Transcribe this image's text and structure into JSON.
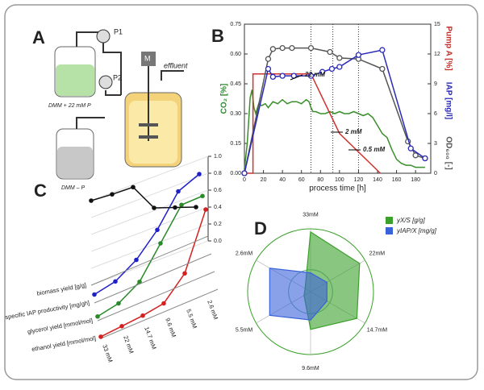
{
  "diagram": {
    "panel": "A",
    "labels": {
      "p1": "P1",
      "p2": "P2",
      "motor": "M",
      "effluent": "effluent",
      "feed": "DMM + 22 mM P",
      "feed2": "DMM – P"
    }
  },
  "chart_data": [
    {
      "type": "line",
      "panel": "B",
      "xlabel": "process time [h]",
      "ylabel": "CO₂ [%]",
      "ylabel_color": "#2e8b2e",
      "y2labels": [
        {
          "text": "Pump A [%]",
          "color": "#c0302b"
        },
        {
          "text": "IAP [mg/l]",
          "color": "#2a2ab0"
        },
        {
          "text": "OD₆₀₀ [-]",
          "color": "#555555"
        }
      ],
      "xlim": [
        0,
        196
      ],
      "xticks": [
        0,
        20,
        40,
        60,
        80,
        100,
        120,
        140,
        160,
        180
      ],
      "ylim": [
        0,
        0.75
      ],
      "yticks": [
        {
          "value": 0,
          "label": "0.00"
        },
        0.15,
        {
          "value": 0.3,
          "label": "0.30"
        },
        0.45,
        {
          "value": 0.6,
          "label": "0.60"
        },
        0.75
      ],
      "y2lim": [
        0,
        15
      ],
      "y2ticks": [
        0,
        3,
        6,
        9,
        12,
        15
      ],
      "vlines": [
        70,
        93,
        120
      ],
      "annotations": [
        "22 mM",
        "2 mM",
        "0.5 mM"
      ],
      "series": [
        {
          "name": "CO₂",
          "color": "#3a8f2a",
          "axis": "y",
          "x": [
            0,
            3,
            6,
            8,
            10,
            12,
            15,
            18,
            22,
            25,
            30,
            35,
            40,
            45,
            50,
            55,
            60,
            65,
            68,
            70,
            72,
            75,
            80,
            85,
            90,
            95,
            100,
            105,
            110,
            115,
            120,
            125,
            130,
            135,
            140,
            145,
            150,
            155,
            160,
            165,
            170,
            175,
            180,
            185,
            190
          ],
          "values": [
            0.02,
            0.15,
            0.38,
            0.42,
            0.33,
            0.3,
            0.35,
            0.34,
            0.35,
            0.33,
            0.36,
            0.35,
            0.37,
            0.35,
            0.36,
            0.36,
            0.35,
            0.37,
            0.36,
            0.33,
            0.31,
            0.31,
            0.3,
            0.3,
            0.31,
            0.3,
            0.31,
            0.3,
            0.3,
            0.31,
            0.3,
            0.29,
            0.3,
            0.28,
            0.24,
            0.2,
            0.18,
            0.12,
            0.07,
            0.05,
            0.04,
            0.04,
            0.03,
            0.03,
            0.03
          ]
        },
        {
          "name": "Pump A",
          "color": "#d0312d",
          "axis": "y2",
          "x": [
            0,
            9,
            9,
            70,
            100,
            143
          ],
          "values": [
            0,
            0,
            10,
            10,
            4,
            0
          ]
        },
        {
          "name": "OD",
          "color": "#555555",
          "axis": "y2",
          "markers": true,
          "x": [
            0,
            25,
            30,
            40,
            50,
            70,
            90,
            100,
            120,
            145,
            172,
            180,
            190
          ],
          "values": [
            0,
            11.5,
            12.5,
            12.6,
            12.6,
            12.6,
            12.2,
            11.6,
            11.5,
            10.5,
            3.2,
            1.8,
            1.5
          ]
        },
        {
          "name": "IAP",
          "color": "#2a2ab8",
          "axis": "y2",
          "markers": true,
          "x": [
            0,
            25,
            30,
            40,
            52,
            70,
            82,
            92,
            100,
            120,
            145,
            175,
            190
          ],
          "values": [
            0,
            10.5,
            9.7,
            9.8,
            9.8,
            9.8,
            10.2,
            10.5,
            10.7,
            11.9,
            12.4,
            2.5,
            1.5
          ]
        }
      ]
    },
    {
      "type": "line3d",
      "panel": "C",
      "categories": [
        "33 mM",
        "22 mM",
        "14.7 mM",
        "9.6 mM",
        "5.5 mM",
        "2.6 mM"
      ],
      "zlim": [
        0,
        1
      ],
      "zticks": [
        {
          "value": 0,
          "label": "0.0"
        },
        0.2,
        0.4,
        0.6,
        0.8,
        {
          "value": 1,
          "label": "1.0"
        }
      ],
      "series": [
        {
          "name": "ethanol yield [mmol/mol]",
          "color": "#d42020",
          "values": [
            0.02,
            0.04,
            0.06,
            0.1,
            0.35,
            1.0
          ]
        },
        {
          "name": "glycerol yield [mmol/mol]",
          "color": "#2a8a2a",
          "values": [
            0.05,
            0.1,
            0.25,
            0.6,
            0.95,
            0.95
          ]
        },
        {
          "name": "specific IAP productivity [mg/gh]",
          "color": "#2020c8",
          "values": [
            0.1,
            0.15,
            0.3,
            0.55,
            0.9,
            1.0
          ]
        },
        {
          "name": "biomass yield [g/g]",
          "color": "#111111",
          "values": [
            1.0,
            0.97,
            0.95,
            0.6,
            0.5,
            0.4
          ]
        }
      ]
    },
    {
      "type": "radar",
      "panel": "D",
      "categories": [
        "33mM",
        "22mM",
        "14.7mM",
        "9.6mM",
        "5.5mM",
        "2.6mM"
      ],
      "rlim": [
        0,
        1
      ],
      "series": [
        {
          "name": "yX/S  [g/g]",
          "color": "#3aa02a",
          "values": [
            0.95,
            0.9,
            0.85,
            0.6,
            0.12,
            0.1
          ]
        },
        {
          "name": "yIAP/X [mg/g]",
          "color": "#3a62d8",
          "values": [
            0.3,
            0.3,
            0.3,
            0.45,
            0.75,
            0.75
          ]
        }
      ]
    }
  ]
}
